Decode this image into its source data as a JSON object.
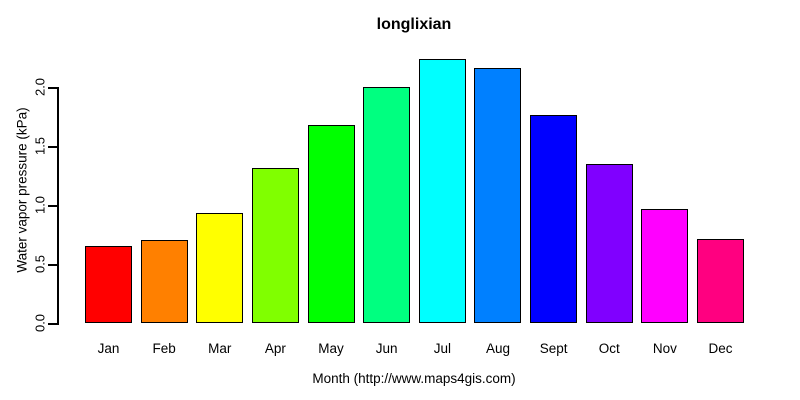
{
  "chart_data": {
    "type": "bar",
    "title": "longlixian",
    "xlabel": "Month (http://www.maps4gis.com)",
    "ylabel": "Water vapor pressure (kPa)",
    "categories": [
      "Jan",
      "Feb",
      "Mar",
      "Apr",
      "May",
      "Jun",
      "Jul",
      "Aug",
      "Sept",
      "Oct",
      "Nov",
      "Dec"
    ],
    "values": [
      0.65,
      0.7,
      0.93,
      1.31,
      1.68,
      2.0,
      2.24,
      2.16,
      1.76,
      1.35,
      0.97,
      0.71
    ],
    "bar_colors": [
      "#FF0000",
      "#FF8000",
      "#FFFF00",
      "#80FF00",
      "#00FF00",
      "#00FF80",
      "#00FFFF",
      "#0080FF",
      "#0000FF",
      "#8000FF",
      "#FF00FF",
      "#FF0080"
    ],
    "bar_border_color": "#000000",
    "y_ticks": [
      "0.0",
      "0.5",
      "1.0",
      "1.5",
      "2.0"
    ],
    "y_tick_values": [
      0.0,
      0.5,
      1.0,
      1.5,
      2.0
    ],
    "ylim": [
      0.0,
      2.24
    ],
    "grid": "off",
    "legend": "none",
    "background_color": "#FFFFFF",
    "axis_color": "#000000",
    "text_color": "#000000"
  }
}
